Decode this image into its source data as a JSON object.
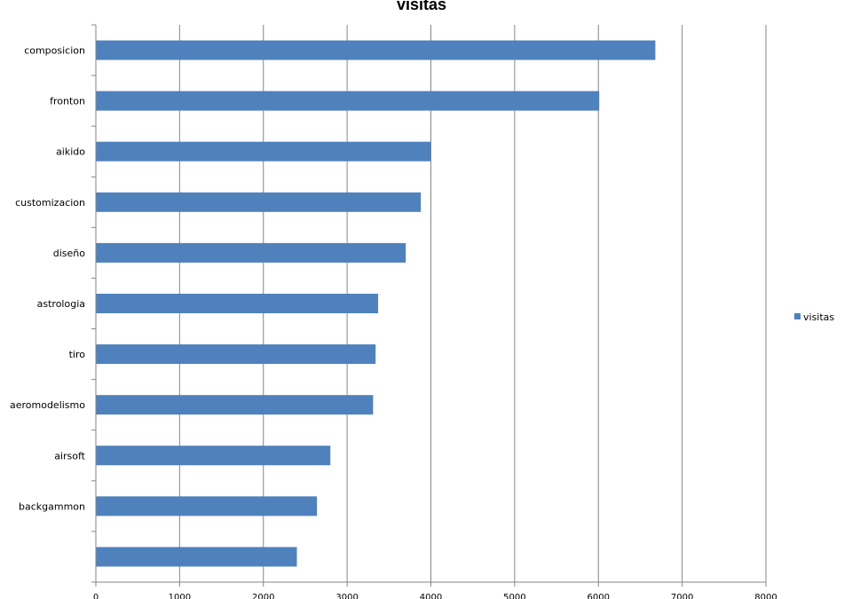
{
  "chart_data": {
    "type": "bar",
    "orientation": "horizontal",
    "title": "visitas",
    "categories": [
      "composicion",
      "fronton",
      "aikido",
      "customizacion",
      "diseño",
      "astrologia",
      "tiro",
      "aeromodelismo",
      "airsoft",
      "backgammon",
      ""
    ],
    "series": [
      {
        "name": "visitas",
        "color": "#4F81BD",
        "values": [
          6680,
          6010,
          4000,
          3880,
          3700,
          3370,
          3340,
          3310,
          2800,
          2640,
          2400
        ]
      }
    ],
    "x_ticks": [
      "0",
      "1000",
      "2000",
      "3000",
      "4000",
      "5000",
      "6000",
      "7000",
      "8000"
    ],
    "xlim": [
      0,
      8000
    ],
    "grid": "vertical",
    "legend_position": "right"
  }
}
